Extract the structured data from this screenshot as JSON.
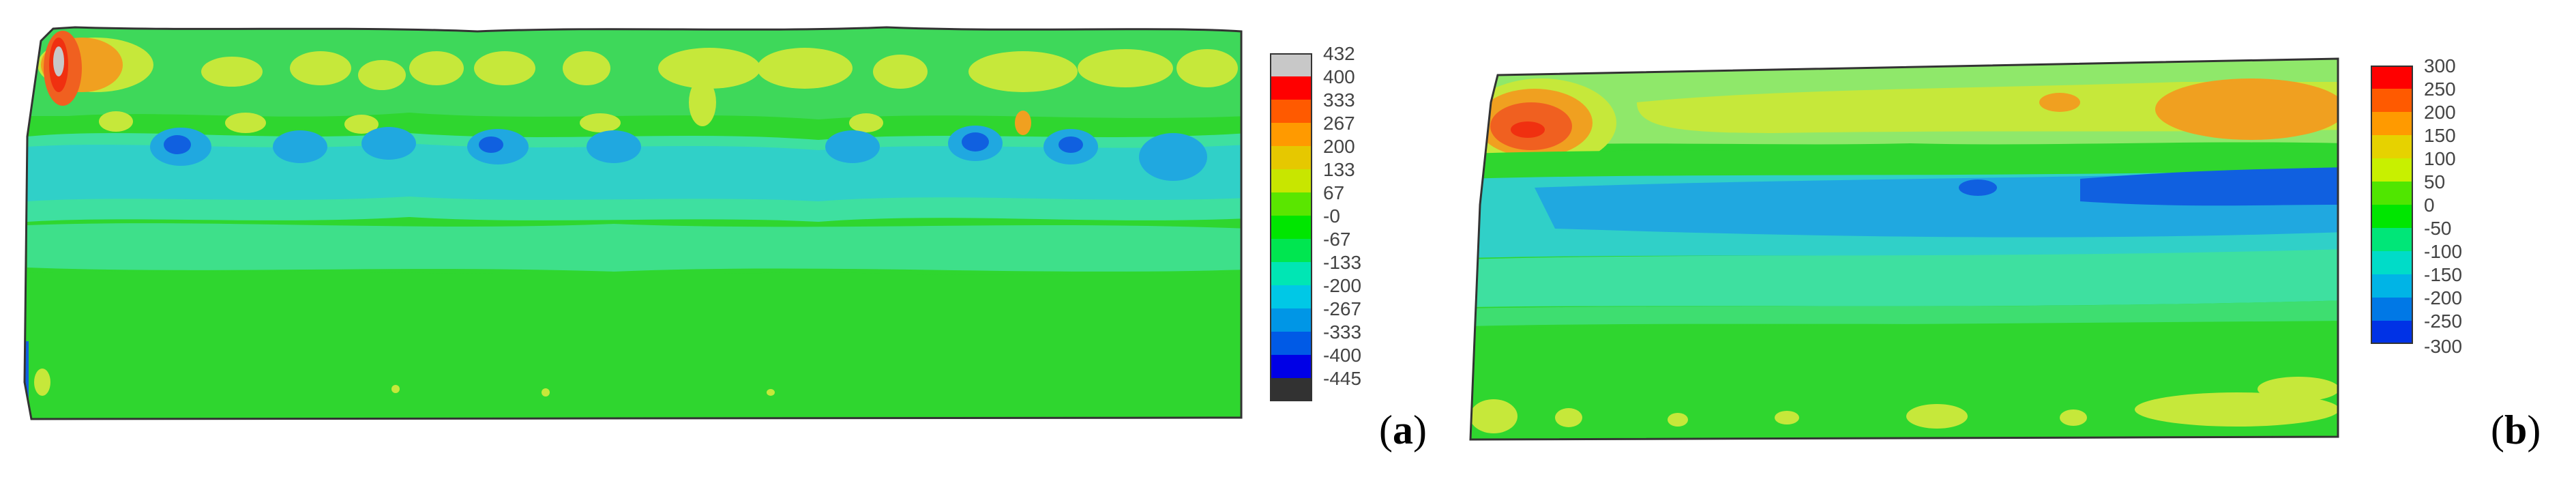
{
  "panels": [
    {
      "id": "a",
      "label_open": "(",
      "label_letter": "a",
      "label_close": ")",
      "legend_values": [
        "432",
        "400",
        "333",
        "267",
        "200",
        "133",
        "67",
        "-0",
        "-67",
        "-133",
        "-200",
        "-267",
        "-333",
        "-400",
        "-445"
      ],
      "legend_colors": [
        "#c8c8c8",
        "#ff0000",
        "#ff5a00",
        "#ff9a00",
        "#e6c800",
        "#c8e600",
        "#5ae600",
        "#00e600",
        "#00e650",
        "#00e6b4",
        "#00c8e6",
        "#0096e6",
        "#005ae6",
        "#0000e6",
        "#323232"
      ]
    },
    {
      "id": "b",
      "label_open": "(",
      "label_letter": "b",
      "label_close": ")",
      "legend_values": [
        "300",
        "250",
        "200",
        "150",
        "100",
        "50",
        "0",
        "-50",
        "-100",
        "-150",
        "-200",
        "-250",
        "-300"
      ],
      "legend_colors": [
        "#ff0000",
        "#ff5a00",
        "#ff9a00",
        "#e6d200",
        "#c8f000",
        "#50e600",
        "#00e600",
        "#00e678",
        "#00dcc8",
        "#00b4e6",
        "#0078e6",
        "#0032e6"
      ]
    }
  ],
  "colors": {
    "field_base": "#2fd62f",
    "light_green": "#8fe86a",
    "yellow_green": "#c6e83a",
    "yellow": "#e8d84a",
    "orange": "#f0a020",
    "red": "#f03010",
    "cyan_green": "#3ee0a0",
    "cyan": "#30d0c8",
    "light_blue": "#20a8e0",
    "blue": "#1060e0",
    "dark_blue": "#0020c0"
  }
}
